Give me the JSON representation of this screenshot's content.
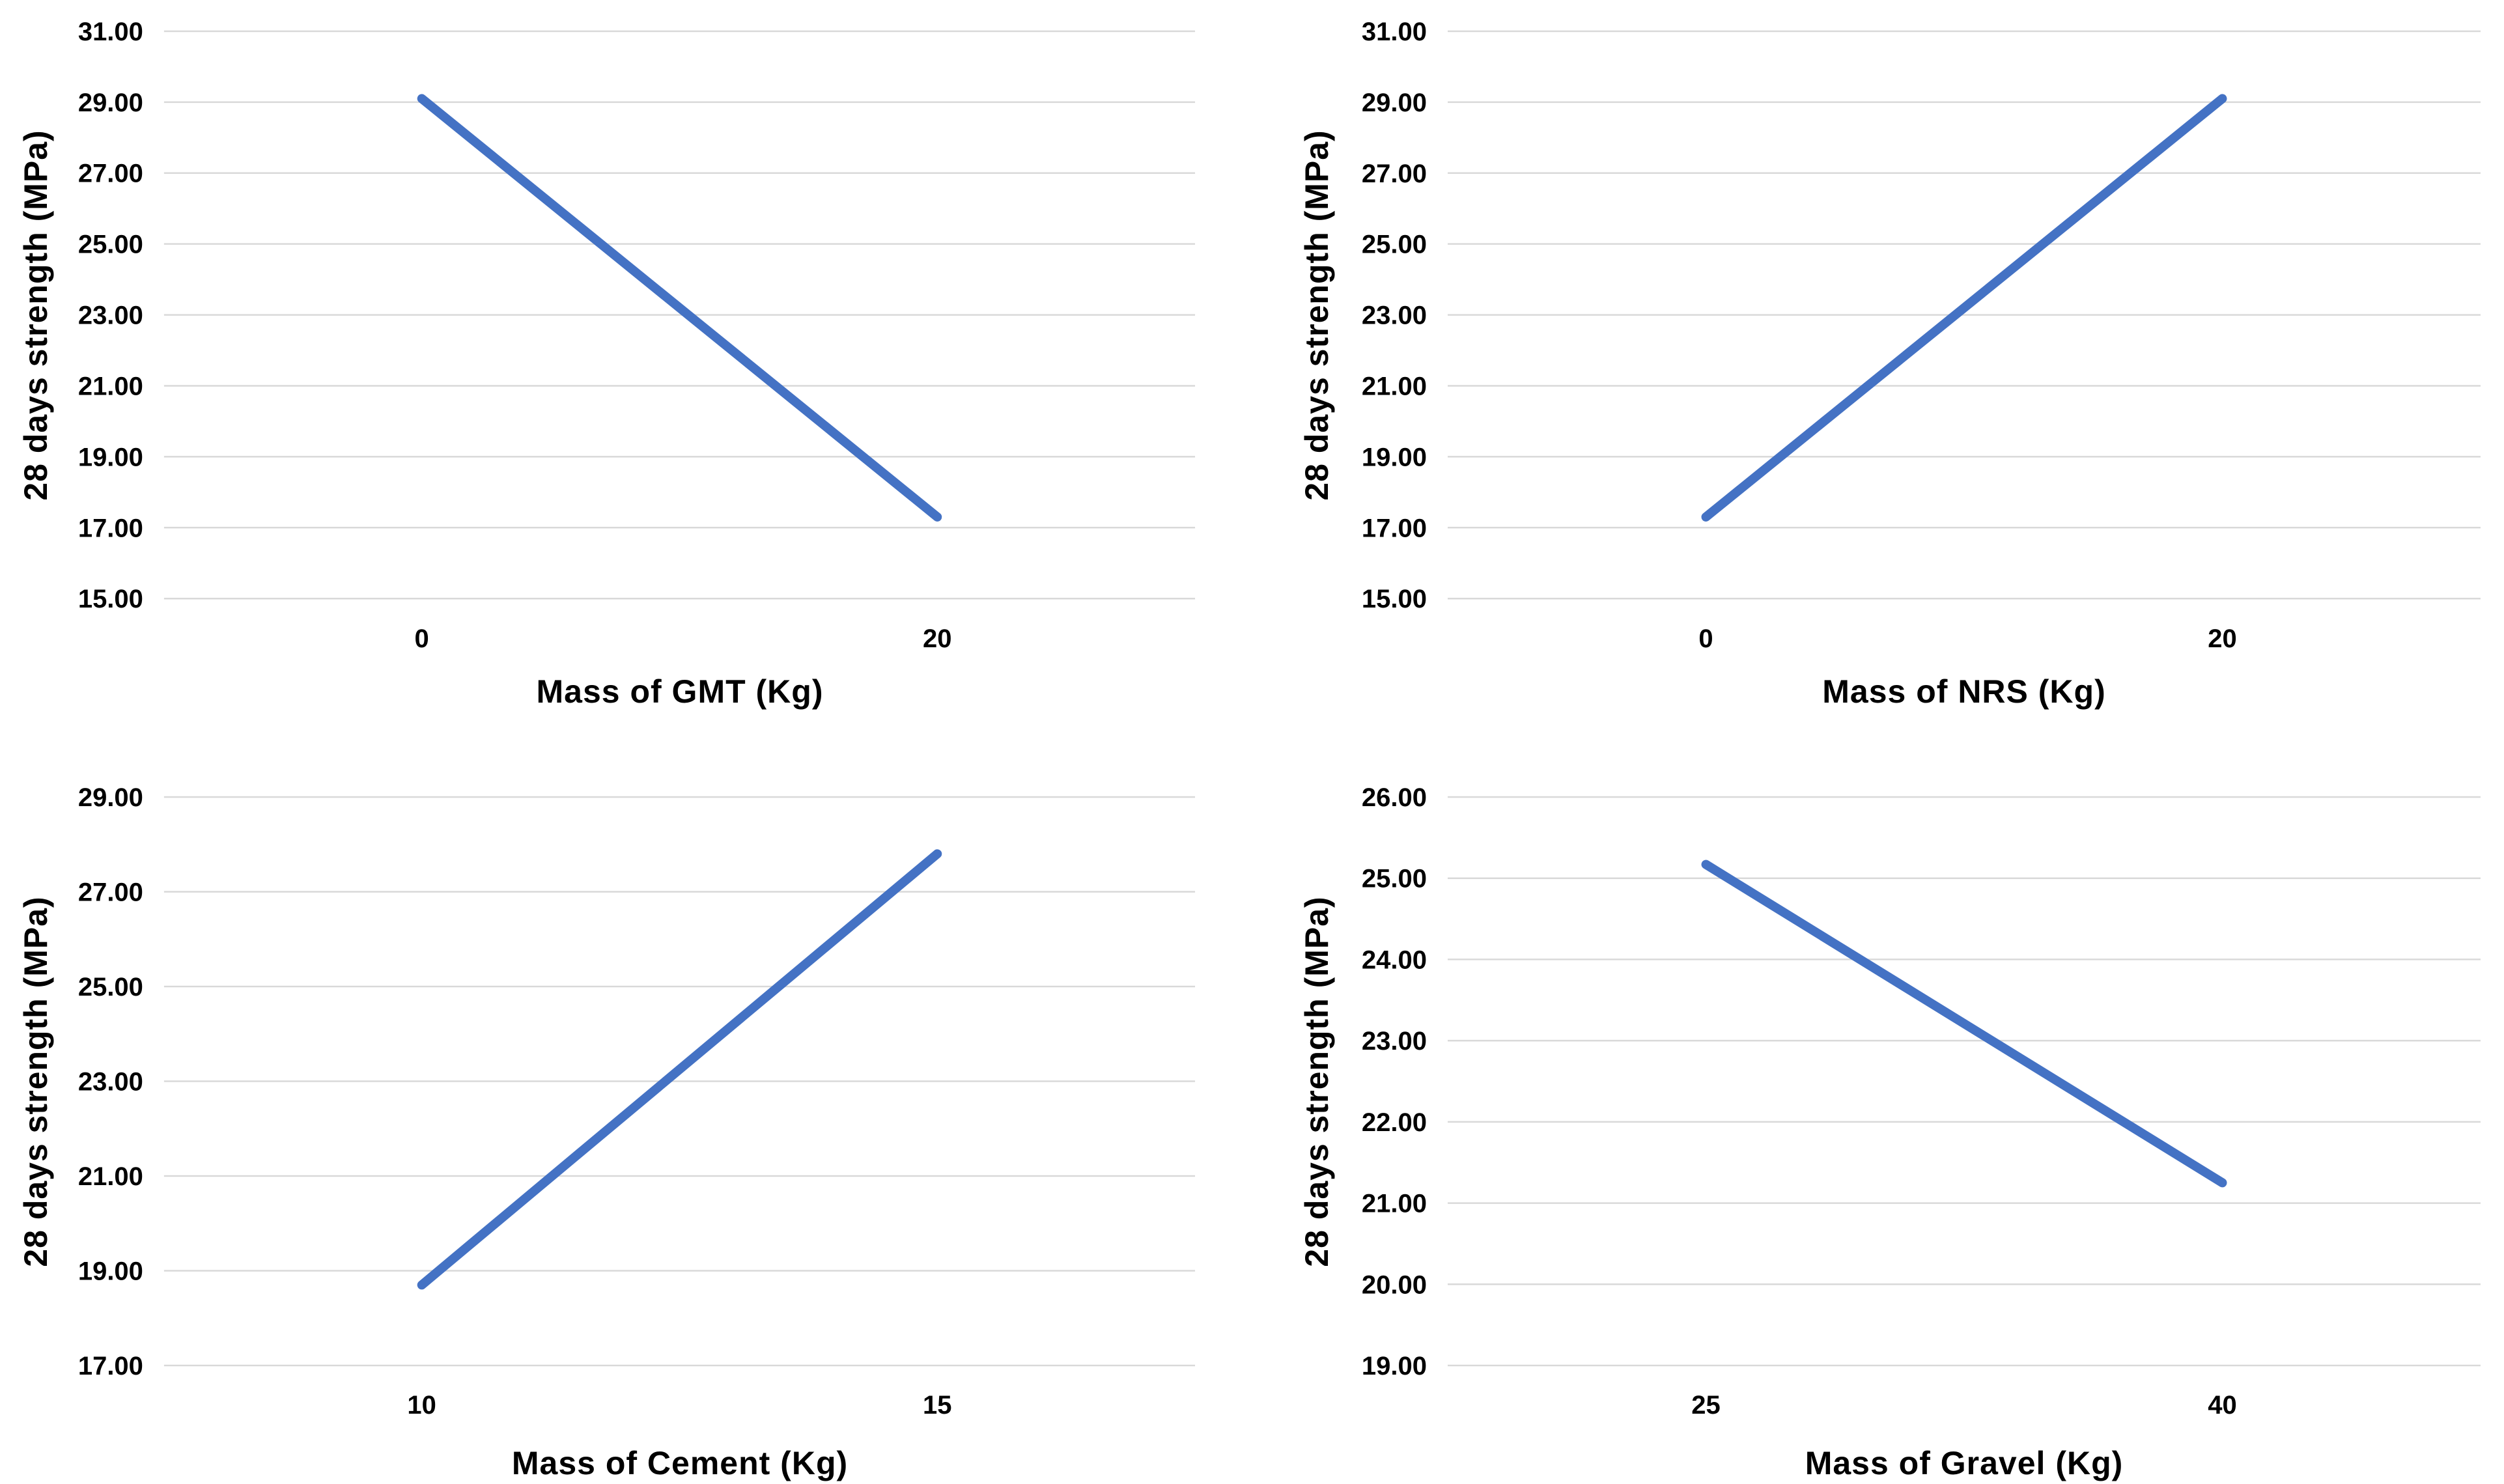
{
  "styles": {
    "line_color": "#4472C4",
    "gridline_color": "#D9D9D9",
    "text_color": "#000000",
    "background": "#FFFFFF"
  },
  "chart_data": [
    {
      "type": "line",
      "name": "gmt",
      "title": "",
      "xlabel": "Mass of GMT (Kg)",
      "ylabel": "28 days strength (MPa)",
      "categories": [
        "0",
        "20"
      ],
      "values": [
        29.1,
        17.3
      ],
      "y_ticks": [
        31,
        29,
        27,
        25,
        23,
        21,
        19,
        17,
        15
      ],
      "y_tick_labels": [
        "31.00",
        "29.00",
        "27.00",
        "25.00",
        "23.00",
        "21.00",
        "19.00",
        "17.00",
        "15.00"
      ],
      "ylim": [
        15,
        31
      ],
      "grid": true,
      "legend": "none",
      "marker": "none"
    },
    {
      "type": "line",
      "name": "nrs",
      "title": "",
      "xlabel": "Mass of NRS (Kg)",
      "ylabel": "28 days strength (MPa)",
      "categories": [
        "0",
        "20"
      ],
      "values": [
        17.3,
        29.1
      ],
      "y_ticks": [
        31,
        29,
        27,
        25,
        23,
        21,
        19,
        17,
        15
      ],
      "y_tick_labels": [
        "31.00",
        "29.00",
        "27.00",
        "25.00",
        "23.00",
        "21.00",
        "19.00",
        "17.00",
        "15.00"
      ],
      "ylim": [
        15,
        31
      ],
      "grid": true,
      "legend": "none",
      "marker": "none"
    },
    {
      "type": "line",
      "name": "cement",
      "title": "",
      "xlabel": "Mass of Cement (Kg)",
      "ylabel": "28 days strength (MPa)",
      "categories": [
        "10",
        "15"
      ],
      "values": [
        18.7,
        27.8
      ],
      "y_ticks": [
        29,
        27,
        25,
        23,
        21,
        19,
        17
      ],
      "y_tick_labels": [
        "29.00",
        "27.00",
        "25.00",
        "23.00",
        "21.00",
        "19.00",
        "17.00"
      ],
      "ylim": [
        17,
        29
      ],
      "grid": true,
      "legend": "none",
      "marker": "none"
    },
    {
      "type": "line",
      "name": "gravel",
      "title": "",
      "xlabel": "Mass of Gravel (Kg)",
      "ylabel": "28 days strength (MPa)",
      "categories": [
        "25",
        "40"
      ],
      "values": [
        25.17,
        21.25
      ],
      "y_ticks": [
        26,
        25,
        24,
        23,
        22,
        21,
        20,
        19
      ],
      "y_tick_labels": [
        "26.00",
        "25.00",
        "24.00",
        "23.00",
        "22.00",
        "21.00",
        "20.00",
        "19.00"
      ],
      "ylim": [
        19,
        26
      ],
      "grid": true,
      "legend": "none",
      "marker": "none"
    }
  ]
}
